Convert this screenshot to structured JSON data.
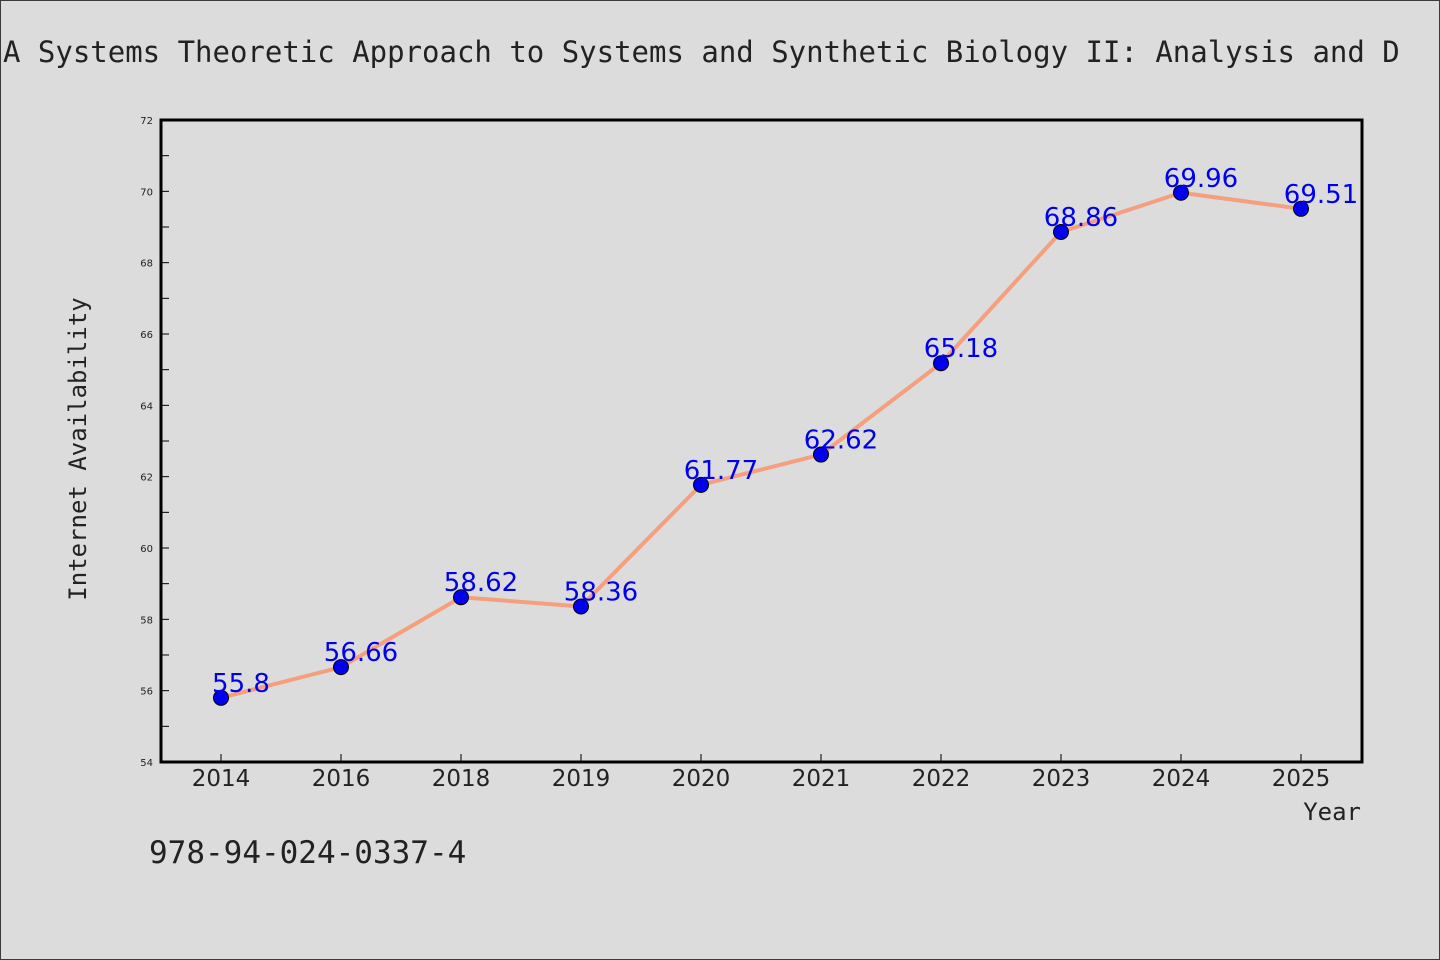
{
  "chart_data": {
    "type": "line",
    "title": "A Systems Theoretic Approach to Systems and Synthetic Biology II: Analysis and D",
    "xlabel": "Year",
    "ylabel": "Internet Availability",
    "categories": [
      "2014",
      "2016",
      "2018",
      "2019",
      "2020",
      "2021",
      "2022",
      "2023",
      "2024",
      "2025"
    ],
    "series": [
      {
        "values": [
          55.8,
          56.66,
          58.62,
          58.36,
          61.77,
          62.62,
          65.18,
          68.86,
          69.96,
          69.51
        ],
        "labels": [
          "55.8",
          "56.66",
          "58.62",
          "58.36",
          "61.77",
          "62.62",
          "65.18",
          "68.86",
          "69.96",
          "69.51"
        ]
      }
    ],
    "ylim": [
      54,
      72
    ],
    "yticks": [
      "54",
      "56",
      "58",
      "60",
      "62",
      "64",
      "66",
      "68",
      "70",
      "72"
    ],
    "grid": false,
    "line_color": "#f4a07f",
    "marker_color": "#0000ee",
    "label_color": "#0000ee"
  },
  "footnote": "978-94-024-0337-4"
}
